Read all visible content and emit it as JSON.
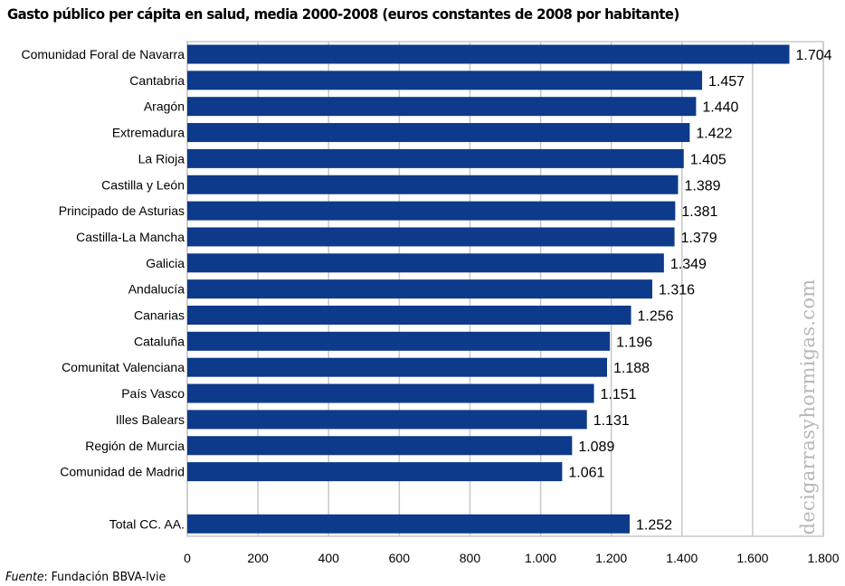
{
  "chart_data": {
    "type": "bar",
    "orientation": "horizontal",
    "title": "Gasto público per cápita en salud, media 2000-2008 (euros constantes de 2008 por habitante)",
    "xlabel": "",
    "ylabel": "",
    "xlim": [
      0,
      1800
    ],
    "xticks": [
      0,
      200,
      400,
      600,
      800,
      1000,
      1200,
      1400,
      1600,
      1800
    ],
    "xtick_labels": [
      "0",
      "200",
      "400",
      "600",
      "800",
      "1.000",
      "1.200",
      "1.400",
      "1.600",
      "1.800"
    ],
    "grid": true,
    "bar_color": "#0d3a8a",
    "categories": [
      "Comunidad Foral de Navarra",
      "Cantabria",
      "Aragón",
      "Extremadura",
      "La Rioja",
      "Castilla y León",
      "Principado de Asturias",
      "Castilla-La Mancha",
      "Galicia",
      "Andalucía",
      "Canarias",
      "Cataluña",
      "Comunitat Valenciana",
      "País Vasco",
      "Illes Balears",
      "Región de Murcia",
      "Comunidad de Madrid",
      "",
      "Total CC. AA."
    ],
    "values": [
      1704,
      1457,
      1440,
      1422,
      1405,
      1389,
      1381,
      1379,
      1349,
      1316,
      1256,
      1196,
      1188,
      1151,
      1131,
      1089,
      1061,
      null,
      1252
    ],
    "value_labels": [
      "1.704",
      "1.457",
      "1.440",
      "1.422",
      "1.405",
      "1.389",
      "1.381",
      "1.379",
      "1.349",
      "1.316",
      "1.256",
      "1.196",
      "1.188",
      "1.151",
      "1.131",
      "1.089",
      "1.061",
      "",
      "1.252"
    ]
  },
  "source_label": "Fuente",
  "source_text": ": Fundación BBVA-Ivie",
  "watermark": "decigarrasyhormigas.com"
}
